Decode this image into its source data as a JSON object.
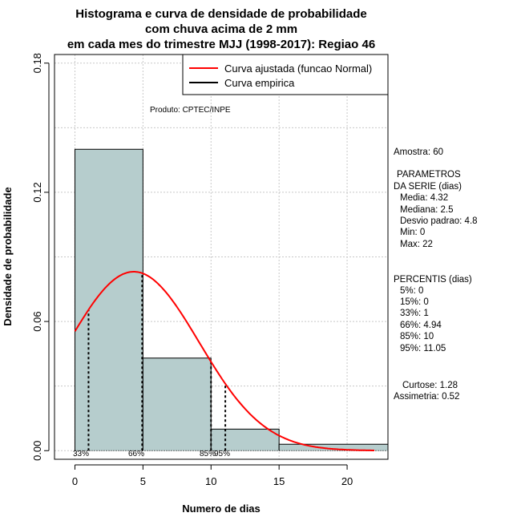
{
  "chart_data": {
    "type": "bar",
    "title_lines": [
      "Histograma e curva de densidade de probabilidade",
      "com chuva acima de 2 mm",
      "em cada mes do trimestre MJJ (1998-2017): Regiao 46"
    ],
    "xlabel": "Numero de dias",
    "ylabel": "Densidade de probabilidade",
    "xlim": [
      -1.5,
      23
    ],
    "ylim": [
      -0.004,
      0.184
    ],
    "x_ticks": [
      0,
      5,
      10,
      15,
      20
    ],
    "y_ticks": [
      0.0,
      0.06,
      0.12,
      0.18
    ],
    "y_tick_labels": [
      "0.00",
      "0.06",
      "0.12",
      "0.18"
    ],
    "grid": true,
    "bins": [
      {
        "from": 0,
        "to": 5,
        "density": 0.14
      },
      {
        "from": 5,
        "to": 10,
        "density": 0.043
      },
      {
        "from": 10,
        "to": 15,
        "density": 0.01
      },
      {
        "from": 15,
        "to": 23,
        "density": 0.003
      }
    ],
    "bar_color": "#b6cdcd",
    "fitted_curve": {
      "name": "Curva ajustada (funcao Normal)",
      "mean": 4.32,
      "sd": 4.8,
      "x_range": [
        0,
        22
      ],
      "color": "#ff0000"
    },
    "empirical_curve": {
      "name": "Curva empirica",
      "color": "#000000"
    },
    "percentile_markers": [
      {
        "label": "33%",
        "x": 1
      },
      {
        "label": "66%",
        "x": 4.94
      },
      {
        "label": "85%",
        "x": 10
      },
      {
        "label": "95%",
        "x": 11.05
      }
    ],
    "legend_position": "top-right",
    "annotation": "Produto: CPTEC/INPE"
  },
  "side_panel": {
    "amostra": "Amostra: 60",
    "params_header_1": "PARAMETROS",
    "params_header_2": "DA SERIE (dias)",
    "params": [
      "Media: 4.32",
      "Mediana: 2.5",
      "Desvio padrao: 4.8",
      "Min: 0",
      "Max: 22"
    ],
    "percentis_header": "PERCENTIS (dias)",
    "percentis": [
      "5%: 0",
      "15%: 0",
      "33%: 1",
      "66%: 4.94",
      "85%: 10",
      "95%: 11.05"
    ],
    "curtose": "Curtose: 1.28",
    "assimetria": "Assimetria: 0.52"
  }
}
